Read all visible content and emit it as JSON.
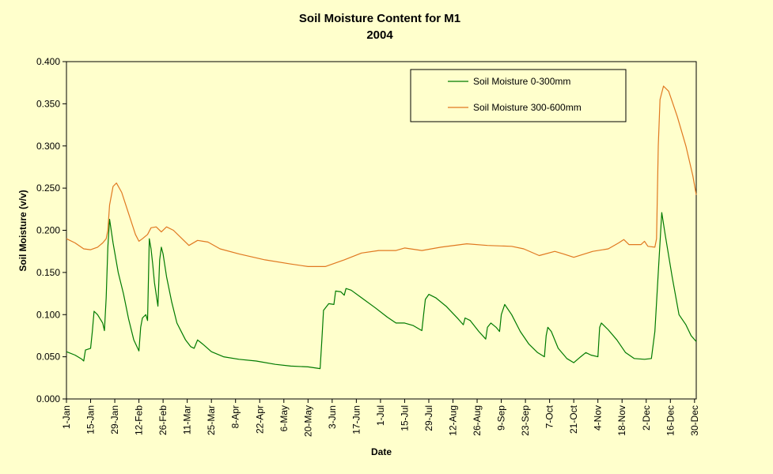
{
  "chart_data": {
    "type": "line",
    "title": "Soil Moisture Content for M1",
    "subtitle": "2004",
    "xlabel": "Date",
    "ylabel": "Soil Moisture (v/v)",
    "ylim": [
      0,
      0.4
    ],
    "yticks": [
      "0.000",
      "0.050",
      "0.100",
      "0.150",
      "0.200",
      "0.250",
      "0.300",
      "0.350",
      "0.400"
    ],
    "xlim": [
      "2004-01-01",
      "2004-12-31"
    ],
    "xticks": [
      {
        "date": "2004-01-01",
        "label": "1-Jan"
      },
      {
        "date": "2004-01-15",
        "label": "15-Jan"
      },
      {
        "date": "2004-01-29",
        "label": "29-Jan"
      },
      {
        "date": "2004-02-12",
        "label": "12-Feb"
      },
      {
        "date": "2004-02-26",
        "label": "26-Feb"
      },
      {
        "date": "2004-03-11",
        "label": "11-Mar"
      },
      {
        "date": "2004-03-25",
        "label": "25-Mar"
      },
      {
        "date": "2004-04-08",
        "label": "8-Apr"
      },
      {
        "date": "2004-04-22",
        "label": "22-Apr"
      },
      {
        "date": "2004-05-06",
        "label": "6-May"
      },
      {
        "date": "2004-05-20",
        "label": "20-May"
      },
      {
        "date": "2004-06-03",
        "label": "3-Jun"
      },
      {
        "date": "2004-06-17",
        "label": "17-Jun"
      },
      {
        "date": "2004-07-01",
        "label": "1-Jul"
      },
      {
        "date": "2004-07-15",
        "label": "15-Jul"
      },
      {
        "date": "2004-07-29",
        "label": "29-Jul"
      },
      {
        "date": "2004-08-12",
        "label": "12-Aug"
      },
      {
        "date": "2004-08-26",
        "label": "26-Aug"
      },
      {
        "date": "2004-09-09",
        "label": "9-Sep"
      },
      {
        "date": "2004-09-23",
        "label": "23-Sep"
      },
      {
        "date": "2004-10-07",
        "label": "7-Oct"
      },
      {
        "date": "2004-10-21",
        "label": "21-Oct"
      },
      {
        "date": "2004-11-04",
        "label": "4-Nov"
      },
      {
        "date": "2004-11-18",
        "label": "18-Nov"
      },
      {
        "date": "2004-12-02",
        "label": "2-Dec"
      },
      {
        "date": "2004-12-16",
        "label": "16-Dec"
      },
      {
        "date": "2004-12-30",
        "label": "30-Dec"
      }
    ],
    "grid": false,
    "legend_position": "top-right",
    "series": [
      {
        "name": "Soil Moisture 0-300mm",
        "color": "#007a00",
        "points": [
          {
            "x": "2004-01-01",
            "y": 0.056
          },
          {
            "x": "2004-01-06",
            "y": 0.052
          },
          {
            "x": "2004-01-10",
            "y": 0.047
          },
          {
            "x": "2004-01-11",
            "y": 0.045
          },
          {
            "x": "2004-01-12",
            "y": 0.058
          },
          {
            "x": "2004-01-15",
            "y": 0.06
          },
          {
            "x": "2004-01-16",
            "y": 0.08
          },
          {
            "x": "2004-01-17",
            "y": 0.104
          },
          {
            "x": "2004-01-19",
            "y": 0.1
          },
          {
            "x": "2004-01-22",
            "y": 0.09
          },
          {
            "x": "2004-01-23",
            "y": 0.081
          },
          {
            "x": "2004-01-24",
            "y": 0.12
          },
          {
            "x": "2004-01-25",
            "y": 0.18
          },
          {
            "x": "2004-01-26",
            "y": 0.213
          },
          {
            "x": "2004-01-28",
            "y": 0.185
          },
          {
            "x": "2004-01-31",
            "y": 0.15
          },
          {
            "x": "2004-02-03",
            "y": 0.125
          },
          {
            "x": "2004-02-06",
            "y": 0.095
          },
          {
            "x": "2004-02-09",
            "y": 0.07
          },
          {
            "x": "2004-02-12",
            "y": 0.057
          },
          {
            "x": "2004-02-13",
            "y": 0.085
          },
          {
            "x": "2004-02-14",
            "y": 0.096
          },
          {
            "x": "2004-02-16",
            "y": 0.1
          },
          {
            "x": "2004-02-17",
            "y": 0.093
          },
          {
            "x": "2004-02-18",
            "y": 0.19
          },
          {
            "x": "2004-02-19",
            "y": 0.178
          },
          {
            "x": "2004-02-20",
            "y": 0.16
          },
          {
            "x": "2004-02-21",
            "y": 0.138
          },
          {
            "x": "2004-02-23",
            "y": 0.11
          },
          {
            "x": "2004-02-24",
            "y": 0.165
          },
          {
            "x": "2004-02-25",
            "y": 0.18
          },
          {
            "x": "2004-02-26",
            "y": 0.172
          },
          {
            "x": "2004-02-28",
            "y": 0.145
          },
          {
            "x": "2004-03-02",
            "y": 0.115
          },
          {
            "x": "2004-03-05",
            "y": 0.09
          },
          {
            "x": "2004-03-08",
            "y": 0.078
          },
          {
            "x": "2004-03-10",
            "y": 0.07
          },
          {
            "x": "2004-03-13",
            "y": 0.062
          },
          {
            "x": "2004-03-15",
            "y": 0.06
          },
          {
            "x": "2004-03-17",
            "y": 0.07
          },
          {
            "x": "2004-03-20",
            "y": 0.065
          },
          {
            "x": "2004-03-25",
            "y": 0.056
          },
          {
            "x": "2004-04-01",
            "y": 0.05
          },
          {
            "x": "2004-04-10",
            "y": 0.047
          },
          {
            "x": "2004-04-20",
            "y": 0.045
          },
          {
            "x": "2004-05-01",
            "y": 0.041
          },
          {
            "x": "2004-05-10",
            "y": 0.039
          },
          {
            "x": "2004-05-20",
            "y": 0.038
          },
          {
            "x": "2004-05-27",
            "y": 0.036
          },
          {
            "x": "2004-05-28",
            "y": 0.07
          },
          {
            "x": "2004-05-29",
            "y": 0.105
          },
          {
            "x": "2004-06-01",
            "y": 0.113
          },
          {
            "x": "2004-06-04",
            "y": 0.112
          },
          {
            "x": "2004-06-05",
            "y": 0.128
          },
          {
            "x": "2004-06-08",
            "y": 0.127
          },
          {
            "x": "2004-06-10",
            "y": 0.123
          },
          {
            "x": "2004-06-11",
            "y": 0.131
          },
          {
            "x": "2004-06-14",
            "y": 0.129
          },
          {
            "x": "2004-06-20",
            "y": 0.12
          },
          {
            "x": "2004-06-28",
            "y": 0.108
          },
          {
            "x": "2004-07-05",
            "y": 0.097
          },
          {
            "x": "2004-07-10",
            "y": 0.09
          },
          {
            "x": "2004-07-15",
            "y": 0.09
          },
          {
            "x": "2004-07-20",
            "y": 0.087
          },
          {
            "x": "2004-07-25",
            "y": 0.081
          },
          {
            "x": "2004-07-26",
            "y": 0.1
          },
          {
            "x": "2004-07-27",
            "y": 0.118
          },
          {
            "x": "2004-07-29",
            "y": 0.124
          },
          {
            "x": "2004-08-02",
            "y": 0.12
          },
          {
            "x": "2004-08-08",
            "y": 0.11
          },
          {
            "x": "2004-08-15",
            "y": 0.095
          },
          {
            "x": "2004-08-18",
            "y": 0.088
          },
          {
            "x": "2004-08-19",
            "y": 0.096
          },
          {
            "x": "2004-08-22",
            "y": 0.093
          },
          {
            "x": "2004-08-27",
            "y": 0.08
          },
          {
            "x": "2004-08-31",
            "y": 0.071
          },
          {
            "x": "2004-09-01",
            "y": 0.085
          },
          {
            "x": "2004-09-03",
            "y": 0.09
          },
          {
            "x": "2004-09-06",
            "y": 0.085
          },
          {
            "x": "2004-09-08",
            "y": 0.08
          },
          {
            "x": "2004-09-09",
            "y": 0.1
          },
          {
            "x": "2004-09-11",
            "y": 0.112
          },
          {
            "x": "2004-09-15",
            "y": 0.1
          },
          {
            "x": "2004-09-20",
            "y": 0.08
          },
          {
            "x": "2004-09-25",
            "y": 0.065
          },
          {
            "x": "2004-09-30",
            "y": 0.055
          },
          {
            "x": "2004-10-04",
            "y": 0.05
          },
          {
            "x": "2004-10-05",
            "y": 0.075
          },
          {
            "x": "2004-10-06",
            "y": 0.085
          },
          {
            "x": "2004-10-08",
            "y": 0.08
          },
          {
            "x": "2004-10-12",
            "y": 0.06
          },
          {
            "x": "2004-10-17",
            "y": 0.048
          },
          {
            "x": "2004-10-21",
            "y": 0.043
          },
          {
            "x": "2004-10-25",
            "y": 0.05
          },
          {
            "x": "2004-10-28",
            "y": 0.055
          },
          {
            "x": "2004-10-31",
            "y": 0.052
          },
          {
            "x": "2004-11-04",
            "y": 0.05
          },
          {
            "x": "2004-11-05",
            "y": 0.085
          },
          {
            "x": "2004-11-06",
            "y": 0.09
          },
          {
            "x": "2004-11-10",
            "y": 0.082
          },
          {
            "x": "2004-11-15",
            "y": 0.07
          },
          {
            "x": "2004-11-20",
            "y": 0.055
          },
          {
            "x": "2004-11-25",
            "y": 0.048
          },
          {
            "x": "2004-12-01",
            "y": 0.047
          },
          {
            "x": "2004-12-05",
            "y": 0.048
          },
          {
            "x": "2004-12-07",
            "y": 0.08
          },
          {
            "x": "2004-12-09",
            "y": 0.15
          },
          {
            "x": "2004-12-11",
            "y": 0.221
          },
          {
            "x": "2004-12-13",
            "y": 0.195
          },
          {
            "x": "2004-12-17",
            "y": 0.145
          },
          {
            "x": "2004-12-21",
            "y": 0.1
          },
          {
            "x": "2004-12-25",
            "y": 0.088
          },
          {
            "x": "2004-12-28",
            "y": 0.075
          },
          {
            "x": "2004-12-31",
            "y": 0.068
          }
        ]
      },
      {
        "name": "Soil Moisture 300-600mm",
        "color": "#e07820",
        "points": [
          {
            "x": "2004-01-01",
            "y": 0.19
          },
          {
            "x": "2004-01-06",
            "y": 0.185
          },
          {
            "x": "2004-01-11",
            "y": 0.178
          },
          {
            "x": "2004-01-15",
            "y": 0.177
          },
          {
            "x": "2004-01-19",
            "y": 0.18
          },
          {
            "x": "2004-01-22",
            "y": 0.185
          },
          {
            "x": "2004-01-24",
            "y": 0.19
          },
          {
            "x": "2004-01-25",
            "y": 0.2
          },
          {
            "x": "2004-01-26",
            "y": 0.23
          },
          {
            "x": "2004-01-28",
            "y": 0.252
          },
          {
            "x": "2004-01-30",
            "y": 0.256
          },
          {
            "x": "2004-02-02",
            "y": 0.245
          },
          {
            "x": "2004-02-06",
            "y": 0.22
          },
          {
            "x": "2004-02-10",
            "y": 0.195
          },
          {
            "x": "2004-02-12",
            "y": 0.187
          },
          {
            "x": "2004-02-14",
            "y": 0.19
          },
          {
            "x": "2004-02-17",
            "y": 0.195
          },
          {
            "x": "2004-02-19",
            "y": 0.203
          },
          {
            "x": "2004-02-22",
            "y": 0.204
          },
          {
            "x": "2004-02-25",
            "y": 0.198
          },
          {
            "x": "2004-02-28",
            "y": 0.204
          },
          {
            "x": "2004-03-03",
            "y": 0.2
          },
          {
            "x": "2004-03-08",
            "y": 0.19
          },
          {
            "x": "2004-03-12",
            "y": 0.182
          },
          {
            "x": "2004-03-17",
            "y": 0.188
          },
          {
            "x": "2004-03-23",
            "y": 0.186
          },
          {
            "x": "2004-03-30",
            "y": 0.178
          },
          {
            "x": "2004-04-10",
            "y": 0.172
          },
          {
            "x": "2004-04-25",
            "y": 0.165
          },
          {
            "x": "2004-05-10",
            "y": 0.16
          },
          {
            "x": "2004-05-20",
            "y": 0.157
          },
          {
            "x": "2004-05-30",
            "y": 0.157
          },
          {
            "x": "2004-06-10",
            "y": 0.165
          },
          {
            "x": "2004-06-20",
            "y": 0.173
          },
          {
            "x": "2004-06-30",
            "y": 0.176
          },
          {
            "x": "2004-07-10",
            "y": 0.176
          },
          {
            "x": "2004-07-15",
            "y": 0.179
          },
          {
            "x": "2004-07-25",
            "y": 0.176
          },
          {
            "x": "2004-08-05",
            "y": 0.18
          },
          {
            "x": "2004-08-20",
            "y": 0.184
          },
          {
            "x": "2004-09-01",
            "y": 0.182
          },
          {
            "x": "2004-09-15",
            "y": 0.181
          },
          {
            "x": "2004-09-22",
            "y": 0.178
          },
          {
            "x": "2004-10-01",
            "y": 0.17
          },
          {
            "x": "2004-10-10",
            "y": 0.175
          },
          {
            "x": "2004-10-15",
            "y": 0.172
          },
          {
            "x": "2004-10-21",
            "y": 0.168
          },
          {
            "x": "2004-11-01",
            "y": 0.175
          },
          {
            "x": "2004-11-10",
            "y": 0.178
          },
          {
            "x": "2004-11-16",
            "y": 0.185
          },
          {
            "x": "2004-11-19",
            "y": 0.189
          },
          {
            "x": "2004-11-22",
            "y": 0.183
          },
          {
            "x": "2004-11-29",
            "y": 0.183
          },
          {
            "x": "2004-12-01",
            "y": 0.187
          },
          {
            "x": "2004-12-03",
            "y": 0.181
          },
          {
            "x": "2004-12-07",
            "y": 0.18
          },
          {
            "x": "2004-12-08",
            "y": 0.19
          },
          {
            "x": "2004-12-09",
            "y": 0.3
          },
          {
            "x": "2004-12-10",
            "y": 0.355
          },
          {
            "x": "2004-12-12",
            "y": 0.371
          },
          {
            "x": "2004-12-15",
            "y": 0.365
          },
          {
            "x": "2004-12-20",
            "y": 0.335
          },
          {
            "x": "2004-12-25",
            "y": 0.3
          },
          {
            "x": "2004-12-29",
            "y": 0.265
          },
          {
            "x": "2004-12-31",
            "y": 0.242
          }
        ]
      }
    ]
  }
}
